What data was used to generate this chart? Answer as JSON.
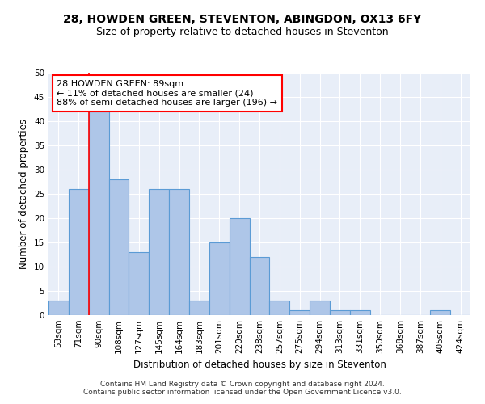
{
  "title": "28, HOWDEN GREEN, STEVENTON, ABINGDON, OX13 6FY",
  "subtitle": "Size of property relative to detached houses in Steventon",
  "xlabel": "Distribution of detached houses by size in Steventon",
  "ylabel": "Number of detached properties",
  "bar_labels": [
    "53sqm",
    "71sqm",
    "90sqm",
    "108sqm",
    "127sqm",
    "145sqm",
    "164sqm",
    "183sqm",
    "201sqm",
    "220sqm",
    "238sqm",
    "257sqm",
    "275sqm",
    "294sqm",
    "313sqm",
    "331sqm",
    "350sqm",
    "368sqm",
    "387sqm",
    "405sqm",
    "424sqm"
  ],
  "bar_values": [
    3,
    26,
    42,
    28,
    13,
    26,
    26,
    3,
    15,
    20,
    12,
    3,
    1,
    3,
    1,
    1,
    0,
    0,
    0,
    1,
    0
  ],
  "bar_color": "#aec6e8",
  "bar_edge_color": "#5b9bd5",
  "bar_edge_width": 0.8,
  "ylim": [
    0,
    50
  ],
  "yticks": [
    0,
    5,
    10,
    15,
    20,
    25,
    30,
    35,
    40,
    45,
    50
  ],
  "annotation_box_text": "28 HOWDEN GREEN: 89sqm\n← 11% of detached houses are smaller (24)\n88% of semi-detached houses are larger (196) →",
  "footer_text": "Contains HM Land Registry data © Crown copyright and database right 2024.\nContains public sector information licensed under the Open Government Licence v3.0.",
  "bg_color": "#e8eef8",
  "grid_color": "#ffffff",
  "title_fontsize": 10,
  "subtitle_fontsize": 9,
  "xlabel_fontsize": 8.5,
  "ylabel_fontsize": 8.5,
  "tick_fontsize": 7.5,
  "annotation_fontsize": 8,
  "footer_fontsize": 6.5
}
